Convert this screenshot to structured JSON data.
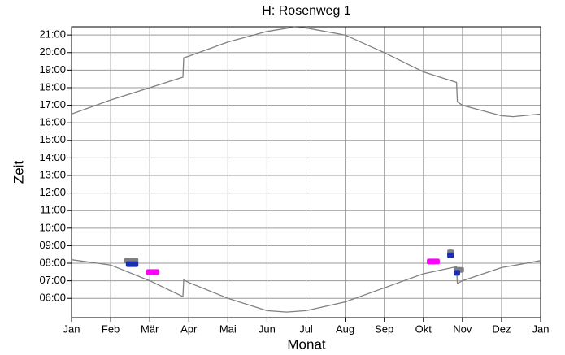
{
  "chart_data": {
    "type": "line",
    "title": "H: Rosenweg 1",
    "x_label": "Monat",
    "y_label": "Zeit",
    "xlim": [
      0,
      12
    ],
    "xticks": [
      {
        "value": 0,
        "label": "Jan"
      },
      {
        "value": 1,
        "label": "Feb"
      },
      {
        "value": 2,
        "label": "Mär"
      },
      {
        "value": 3,
        "label": "Apr"
      },
      {
        "value": 4,
        "label": "Mai"
      },
      {
        "value": 5,
        "label": "Jun"
      },
      {
        "value": 6,
        "label": "Jul"
      },
      {
        "value": 7,
        "label": "Aug"
      },
      {
        "value": 8,
        "label": "Sep"
      },
      {
        "value": 9,
        "label": "Okt"
      },
      {
        "value": 10,
        "label": "Nov"
      },
      {
        "value": 11,
        "label": "Dez"
      },
      {
        "value": 12,
        "label": "Jan"
      }
    ],
    "ylim": [
      4.9,
      21.47
    ],
    "yticks": [
      {
        "value": 6,
        "label": "06:00"
      },
      {
        "value": 7,
        "label": "07:00"
      },
      {
        "value": 8,
        "label": "08:00"
      },
      {
        "value": 9,
        "label": "09:00"
      },
      {
        "value": 10,
        "label": "10:00"
      },
      {
        "value": 11,
        "label": "11:00"
      },
      {
        "value": 12,
        "label": "12:00"
      },
      {
        "value": 13,
        "label": "13:00"
      },
      {
        "value": 14,
        "label": "14:00"
      },
      {
        "value": 15,
        "label": "15:00"
      },
      {
        "value": 16,
        "label": "16:00"
      },
      {
        "value": 17,
        "label": "17:00"
      },
      {
        "value": 18,
        "label": "18:00"
      },
      {
        "value": 19,
        "label": "19:00"
      },
      {
        "value": 20,
        "label": "20:00"
      },
      {
        "value": 21,
        "label": "21:00"
      }
    ],
    "grid": true,
    "series": [
      {
        "color": "#808080",
        "x": [
          0,
          1,
          2,
          2.85,
          2.87,
          3,
          4,
          5,
          5.7,
          6,
          7,
          8,
          9,
          9.85,
          9.87,
          10,
          11,
          11.3,
          12
        ],
        "values": [
          16.5,
          17.3,
          18.0,
          18.6,
          19.7,
          19.8,
          20.6,
          21.2,
          21.45,
          21.4,
          21.0,
          20.0,
          18.9,
          18.3,
          17.2,
          17.0,
          16.4,
          16.35,
          16.5
        ]
      },
      {
        "color": "#808080",
        "x": [
          0,
          1,
          2,
          2.85,
          2.87,
          3,
          4,
          5,
          5.5,
          6,
          7,
          8,
          9,
          9.85,
          9.87,
          10,
          11,
          12
        ],
        "values": [
          8.2,
          7.9,
          7.0,
          6.1,
          7.05,
          6.9,
          6.0,
          5.3,
          5.22,
          5.3,
          5.8,
          6.6,
          7.4,
          7.8,
          6.85,
          7.0,
          7.75,
          8.15
        ]
      }
    ],
    "markers": [
      {
        "color": "#808080",
        "x": [
          1.35,
          1.71
        ],
        "y": 8.15
      },
      {
        "color": "#1a2fb0",
        "x": [
          1.39,
          1.71
        ],
        "y": 7.95
      },
      {
        "color": "#ff00ff",
        "x": [
          1.91,
          2.25
        ],
        "y": 7.5
      },
      {
        "color": "#ff00ff",
        "x": [
          9.09,
          9.42
        ],
        "y": 8.1
      },
      {
        "color": "#808080",
        "x": [
          9.61,
          9.78
        ],
        "y": 8.62
      },
      {
        "color": "#1a2fb0",
        "x": [
          9.61,
          9.78
        ],
        "y": 8.45
      },
      {
        "color": "#808080",
        "x": [
          9.78,
          10.04
        ],
        "y": 7.62
      },
      {
        "color": "#1a2fb0",
        "x": [
          9.78,
          9.94
        ],
        "y": 7.45
      }
    ]
  }
}
